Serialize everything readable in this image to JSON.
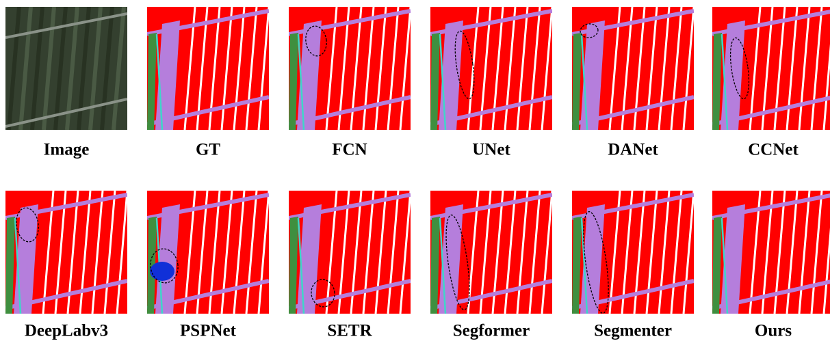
{
  "panels": [
    {
      "label": "Image"
    },
    {
      "label": "GT"
    },
    {
      "label": "FCN"
    },
    {
      "label": "UNet"
    },
    {
      "label": "DANet"
    },
    {
      "label": "CCNet"
    },
    {
      "label": "DeepLabv3"
    },
    {
      "label": "PSPNet"
    },
    {
      "label": "SETR"
    },
    {
      "label": "Segformer"
    },
    {
      "label": "Segmenter"
    },
    {
      "label": "Ours"
    }
  ]
}
